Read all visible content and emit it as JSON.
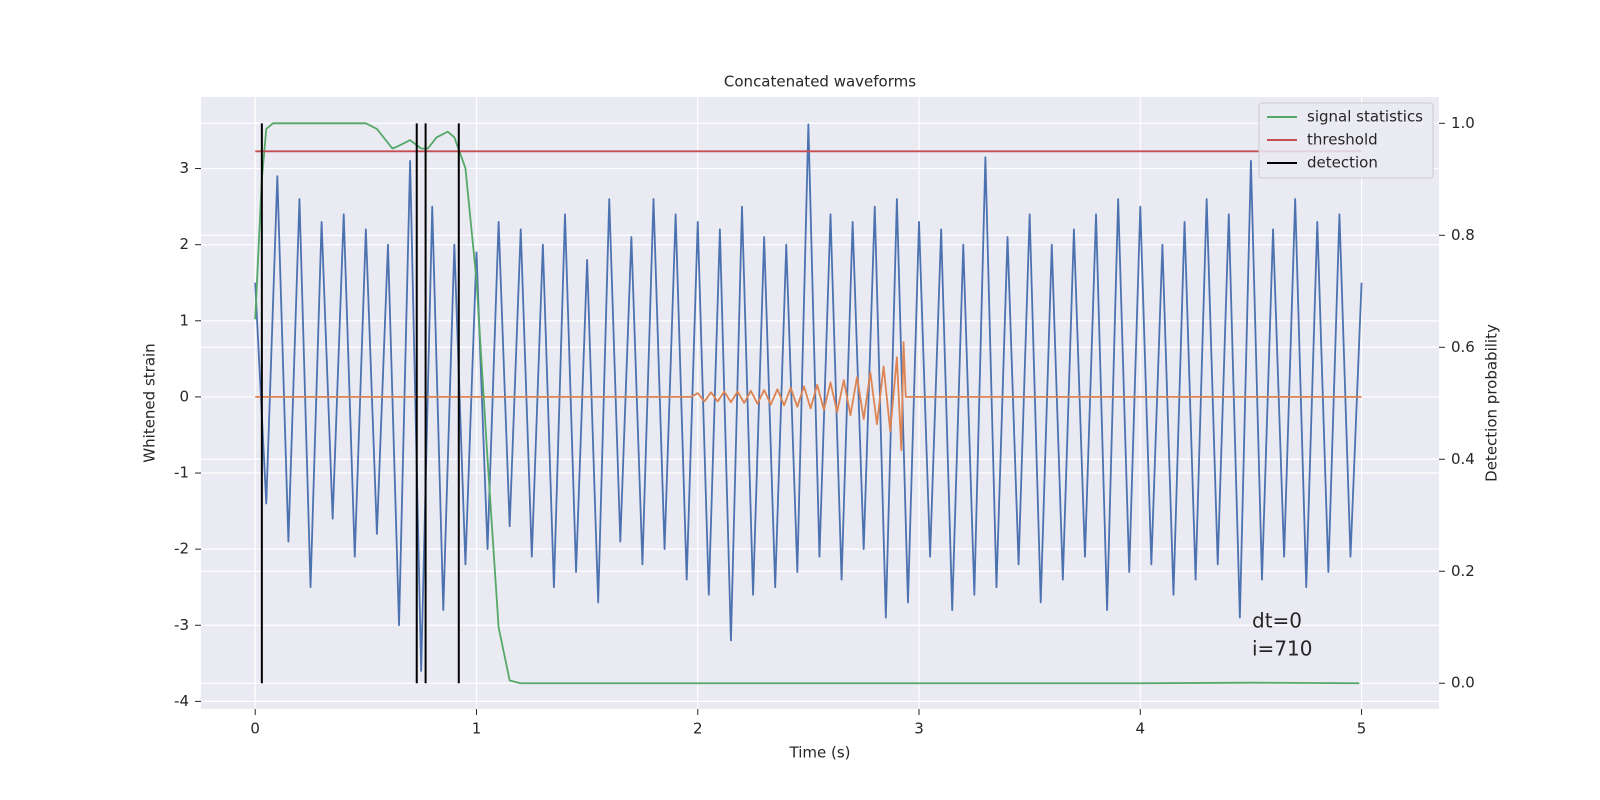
{
  "chart_data": {
    "type": "line",
    "title": "Concatenated waveforms",
    "xlabel": "Time (s)",
    "ylabel": "Whitened strain",
    "y2label": "Detection probability",
    "xlim": [
      -0.245,
      5.35
    ],
    "ylim": [
      -4.1,
      3.94
    ],
    "y2lim": [
      -0.046,
      1.047
    ],
    "xticks": [
      0,
      1,
      2,
      3,
      4,
      5
    ],
    "yticks": [
      -4,
      -3,
      -2,
      -1,
      0,
      1,
      2,
      3
    ],
    "y2ticks": [
      {
        "value": 0,
        "label": "0.0"
      },
      {
        "value": 0.2,
        "label": "0.2"
      },
      {
        "value": 0.4,
        "label": "0.4"
      },
      {
        "value": 0.6,
        "label": "0.6"
      },
      {
        "value": 0.8,
        "label": "0.8"
      },
      {
        "value": 1,
        "label": "1.0"
      }
    ],
    "grid": true,
    "legend": "upper right",
    "annotations": [
      "dt=0",
      "i=710"
    ],
    "series": [
      {
        "color": "#4c72b0",
        "kind": "line",
        "axis": "y",
        "x": [
          0,
          0.05,
          0.1,
          0.15,
          0.2,
          0.25,
          0.3,
          0.35,
          0.4,
          0.45,
          0.5,
          0.55,
          0.6,
          0.65,
          0.7,
          0.75,
          0.8,
          0.85,
          0.9,
          0.95,
          1,
          1.05,
          1.1,
          1.15,
          1.2,
          1.25,
          1.3,
          1.35,
          1.4,
          1.45,
          1.5,
          1.55,
          1.6,
          1.65,
          1.7,
          1.75,
          1.8,
          1.85,
          1.9,
          1.95,
          2,
          2.05,
          2.1,
          2.15,
          2.2,
          2.25,
          2.3,
          2.35,
          2.4,
          2.45,
          2.5,
          2.55,
          2.6,
          2.65,
          2.7,
          2.75,
          2.8,
          2.85,
          2.9,
          2.95,
          3,
          3.05,
          3.1,
          3.15,
          3.2,
          3.25,
          3.3,
          3.35,
          3.4,
          3.45,
          3.5,
          3.55,
          3.6,
          3.65,
          3.7,
          3.75,
          3.8,
          3.85,
          3.9,
          3.95,
          4,
          4.05,
          4.1,
          4.15,
          4.2,
          4.25,
          4.3,
          4.35,
          4.4,
          4.45,
          4.5,
          4.55,
          4.6,
          4.65,
          4.7,
          4.75,
          4.8,
          4.85,
          4.9,
          4.95,
          5
        ],
        "values": [
          1.5,
          -1.4,
          2.9,
          -1.9,
          2.6,
          -2.5,
          2.3,
          -1.6,
          2.4,
          -2.1,
          2.2,
          -1.8,
          2.0,
          -3.0,
          3.1,
          -3.6,
          2.5,
          -2.8,
          2.0,
          -2.2,
          1.9,
          -2.0,
          2.3,
          -1.7,
          2.2,
          -2.1,
          2.0,
          -2.5,
          2.4,
          -2.3,
          1.8,
          -2.7,
          2.6,
          -1.9,
          2.1,
          -2.2,
          2.6,
          -2.0,
          2.4,
          -2.4,
          2.3,
          -2.6,
          2.2,
          -3.2,
          2.5,
          -2.6,
          2.1,
          -2.5,
          2.0,
          -2.3,
          3.58,
          -2.1,
          2.4,
          -2.4,
          2.3,
          -2.0,
          2.5,
          -2.9,
          2.6,
          -2.7,
          2.3,
          -2.1,
          2.2,
          -2.8,
          2.0,
          -2.6,
          3.15,
          -2.5,
          2.1,
          -2.2,
          2.4,
          -2.7,
          2.0,
          -2.4,
          2.2,
          -2.1,
          2.4,
          -2.8,
          2.6,
          -2.3,
          2.5,
          -2.2,
          2.0,
          -2.6,
          2.3,
          -2.4,
          2.6,
          -2.2,
          2.4,
          -2.9,
          3.1,
          -2.4,
          2.2,
          -2.1,
          2.6,
          -2.5,
          2.3,
          -2.3,
          2.4,
          -2.1,
          1.5
        ]
      },
      {
        "color": "#dd8452",
        "kind": "line",
        "axis": "y",
        "x": [
          0,
          1.97,
          2.0,
          2.03,
          2.06,
          2.09,
          2.12,
          2.15,
          2.18,
          2.21,
          2.24,
          2.27,
          2.3,
          2.33,
          2.36,
          2.39,
          2.42,
          2.45,
          2.48,
          2.51,
          2.54,
          2.57,
          2.6,
          2.63,
          2.66,
          2.69,
          2.72,
          2.75,
          2.78,
          2.81,
          2.84,
          2.87,
          2.9,
          2.92,
          2.93,
          2.94,
          5
        ],
        "values": [
          0,
          0,
          0.05,
          -0.06,
          0.06,
          -0.06,
          0.07,
          -0.07,
          0.07,
          -0.08,
          0.08,
          -0.09,
          0.09,
          -0.1,
          0.1,
          -0.11,
          0.12,
          -0.13,
          0.14,
          -0.15,
          0.16,
          -0.17,
          0.19,
          -0.2,
          0.22,
          -0.24,
          0.26,
          -0.29,
          0.32,
          -0.36,
          0.4,
          -0.45,
          0.52,
          -0.7,
          0.72,
          0,
          0
        ]
      },
      {
        "name": "signal statistics",
        "color": "#55a868",
        "kind": "line",
        "axis": "y2",
        "x": [
          0,
          0.03,
          0.05,
          0.08,
          0.1,
          0.5,
          0.55,
          0.6,
          0.62,
          0.65,
          0.7,
          0.75,
          0.78,
          0.82,
          0.87,
          0.9,
          0.95,
          1.0,
          1.05,
          1.1,
          1.15,
          1.2,
          2,
          3,
          4,
          4.5,
          4.99
        ],
        "values": [
          0.65,
          0.9,
          0.99,
          1.0,
          1.0,
          1.0,
          0.99,
          0.965,
          0.955,
          0.96,
          0.97,
          0.955,
          0.955,
          0.975,
          0.985,
          0.975,
          0.92,
          0.72,
          0.4,
          0.1,
          0.005,
          0,
          0,
          0,
          0,
          0.001,
          0
        ]
      },
      {
        "name": "threshold",
        "color": "#c44e52",
        "kind": "line",
        "axis": "y2",
        "x": [
          0,
          5
        ],
        "values": [
          0.95,
          0.95
        ]
      },
      {
        "name": "detection",
        "color": "#000000",
        "kind": "vlines",
        "axis": "y2",
        "x": [
          0.03,
          0.73,
          0.77,
          0.92
        ],
        "ymin": 0,
        "ymax": 1
      }
    ]
  }
}
